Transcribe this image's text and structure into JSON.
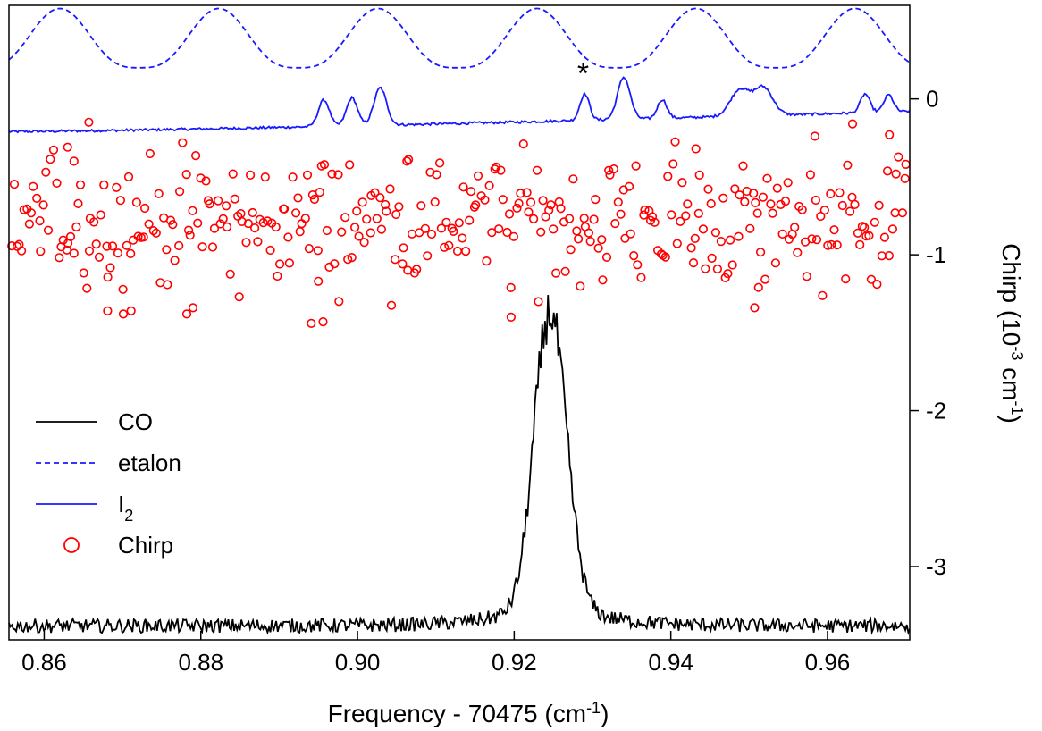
{
  "chart_data": {
    "type": "line",
    "xlabel": {
      "main": "Frequency - 70475 (cm",
      "sup": "-1",
      "close": ")"
    },
    "ylabel": {
      "main": "Chirp (10",
      "sup": "-3",
      "mid": " cm",
      "sup2": "-1",
      "close": ")"
    },
    "xlim": [
      0.8555,
      0.9705
    ],
    "ylim": [
      -3.47,
      0.6
    ],
    "x_ticks": [
      {
        "value": 0.86,
        "label": "0.86"
      },
      {
        "value": 0.88,
        "label": "0.88"
      },
      {
        "value": 0.9,
        "label": "0.90"
      },
      {
        "value": 0.92,
        "label": "0.92"
      },
      {
        "value": 0.94,
        "label": "0.94"
      },
      {
        "value": 0.96,
        "label": "0.96"
      }
    ],
    "y_ticks": [
      {
        "value": 0,
        "label": "0"
      },
      {
        "value": -1,
        "label": "-1"
      },
      {
        "value": -2,
        "label": "-2"
      },
      {
        "value": -3,
        "label": "-3"
      }
    ],
    "annotation": {
      "text": "*",
      "x": 0.9288,
      "y": 0.18
    },
    "legend": {
      "position": "bottom-left",
      "items": [
        {
          "name": "CO",
          "style": "solid",
          "color": "#000000",
          "marker": "line"
        },
        {
          "name": "etalon",
          "style": "dashed",
          "color": "#1a1aff",
          "marker": "line"
        },
        {
          "name": "I",
          "sub": "2",
          "style": "solid",
          "color": "#1a1aff",
          "marker": "line"
        },
        {
          "name": "Chirp",
          "style": "none",
          "color": "#ff0000",
          "marker": "circle"
        }
      ]
    },
    "series": [
      {
        "name": "CO",
        "kind": "line",
        "color": "#000000",
        "style": "solid",
        "baseline": -3.38,
        "noise": 0.045,
        "peaks": [
          {
            "x": 0.9247,
            "amp": 1.78,
            "width": 0.00205
          },
          {
            "x": 0.9232,
            "amp": 0.12,
            "width": 0.0012
          }
        ]
      },
      {
        "name": "etalon",
        "kind": "line",
        "color": "#1a1aff",
        "style": "dashed",
        "period": 0.0203,
        "first_max": 0.862,
        "max": 0.58,
        "min": 0.2
      },
      {
        "name": "I2",
        "kind": "line",
        "color": "#1a1aff",
        "style": "solid",
        "baseline_start": -0.21,
        "baseline_end": -0.08,
        "noise": 0.008,
        "peaks": [
          {
            "x": 0.8957,
            "amp": 0.17,
            "width": 0.0007
          },
          {
            "x": 0.8993,
            "amp": 0.18,
            "width": 0.0007
          },
          {
            "x": 0.9029,
            "amp": 0.24,
            "width": 0.0008
          },
          {
            "x": 0.929,
            "amp": 0.17,
            "width": 0.0006
          },
          {
            "x": 0.934,
            "amp": 0.27,
            "width": 0.0008
          },
          {
            "x": 0.9389,
            "amp": 0.12,
            "width": 0.0006
          },
          {
            "x": 0.9488,
            "amp": 0.17,
            "width": 0.0012
          },
          {
            "x": 0.9518,
            "amp": 0.18,
            "width": 0.0012
          },
          {
            "x": 0.9648,
            "amp": 0.12,
            "width": 0.0006
          },
          {
            "x": 0.9678,
            "amp": 0.11,
            "width": 0.0006
          }
        ]
      },
      {
        "name": "Chirp",
        "kind": "scatter",
        "color": "#ff0000",
        "marker": "open-circle",
        "mean": -0.78,
        "spread": 0.2,
        "count": 360,
        "x_range": [
          0.8557,
          0.97
        ],
        "highlights": [
          {
            "x": 0.8657,
            "y": -0.15
          },
          {
            "x": 0.863,
            "y": -0.31
          },
          {
            "x": 0.8638,
            "y": -0.4
          },
          {
            "x": 0.8681,
            "y": -1.36
          },
          {
            "x": 0.8701,
            "y": -1.38
          },
          {
            "x": 0.8711,
            "y": -1.36
          },
          {
            "x": 0.8782,
            "y": -1.38
          },
          {
            "x": 0.879,
            "y": -1.34
          },
          {
            "x": 0.8849,
            "y": -1.27
          },
          {
            "x": 0.8941,
            "y": -1.44
          },
          {
            "x": 0.8956,
            "y": -1.43
          },
          {
            "x": 0.895,
            "y": -1.17
          },
          {
            "x": 0.9196,
            "y": -1.4
          },
          {
            "x": 0.9507,
            "y": -1.34
          },
          {
            "x": 0.9512,
            "y": -1.21
          },
          {
            "x": 0.9584,
            "y": -0.24
          },
          {
            "x": 0.9632,
            "y": -0.16
          },
          {
            "x": 0.9679,
            "y": -0.23
          },
          {
            "x": 0.9432,
            "y": -0.32
          },
          {
            "x": 0.9063,
            "y": -0.4
          },
          {
            "x": 0.97,
            "y": -0.42
          }
        ]
      }
    ]
  }
}
